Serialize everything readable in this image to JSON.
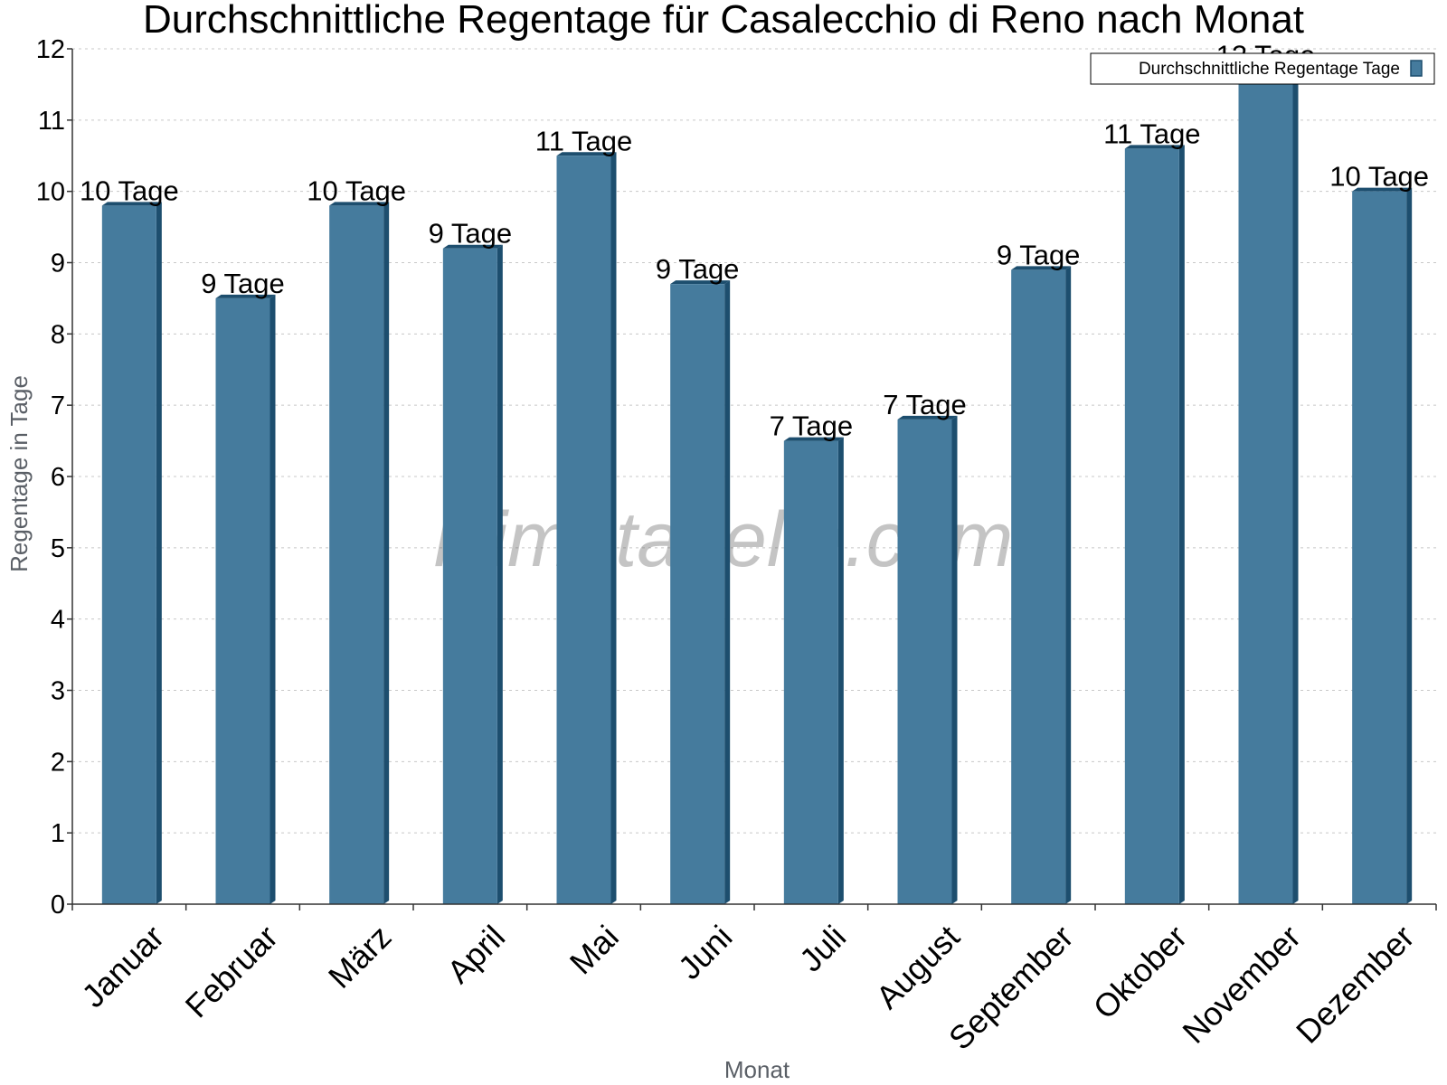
{
  "chart_data": {
    "type": "bar",
    "title": "Durchschnittliche Regentage für Casalecchio di Reno nach Monat",
    "xlabel": "Monat",
    "ylabel": "Regentage in Tage",
    "categories": [
      "Januar",
      "Februar",
      "März",
      "April",
      "Mai",
      "Juni",
      "Juli",
      "August",
      "September",
      "Oktober",
      "November",
      "Dezember"
    ],
    "series": [
      {
        "name": "Durchschnittliche Regentage Tage",
        "values": [
          9.8,
          8.5,
          9.8,
          9.2,
          10.5,
          8.7,
          6.5,
          6.8,
          8.9,
          10.6,
          11.7,
          10.0
        ],
        "labels": [
          "10 Tage",
          "9 Tage",
          "10 Tage",
          "9 Tage",
          "11 Tage",
          "9 Tage",
          "7 Tage",
          "7 Tage",
          "9 Tage",
          "11 Tage",
          "12 Tage",
          "10 Tage"
        ]
      }
    ],
    "ylim": [
      0,
      12
    ],
    "yticks": [
      0,
      1,
      2,
      3,
      4,
      5,
      6,
      7,
      8,
      9,
      10,
      11,
      12
    ],
    "grid": true,
    "legend_position": "top-right",
    "bar_color": "#457b9d",
    "bar_edge_color": "#1d4e6e",
    "watermark": "klimatabelle.com"
  }
}
